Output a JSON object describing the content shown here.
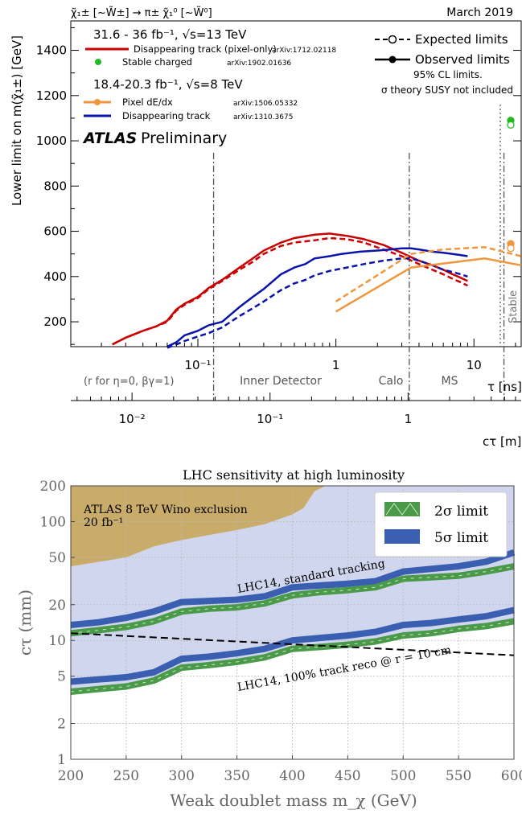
{
  "chart_data": [
    {
      "type": "line",
      "process": "χ̃₁± [~W̃±] → π± χ̃₁⁰ [~W̃⁰]",
      "date": "March 2019",
      "ylabel": "Lower limit on m(χ̃₁±) [GeV]",
      "x_axis_tau": {
        "label": "τ [ns]",
        "scale": "log",
        "range": [
          0.012,
          22
        ],
        "ticks": [
          {
            "v": 0.1,
            "label": "10⁻¹"
          },
          {
            "v": 1,
            "label": "1"
          },
          {
            "v": 10,
            "label": "10"
          }
        ]
      },
      "x_axis_ctau": {
        "label": "cτ [m]",
        "scale": "log",
        "range": [
          0.0036,
          6.6
        ],
        "ticks": [
          {
            "v": 0.01,
            "label": "10⁻²"
          },
          {
            "v": 0.1,
            "label": "10⁻¹"
          },
          {
            "v": 1,
            "label": "1"
          },
          {
            "v": 10,
            "label": "10"
          }
        ]
      },
      "ylim": [
        90,
        1530
      ],
      "y_ticks": [
        200,
        400,
        600,
        800,
        1000,
        1200,
        1400
      ],
      "regions": [
        "(r for η=0, βγ=1)",
        "Inner Detector",
        "Calo",
        "MS",
        "Stable"
      ],
      "region_boundaries_tau_ns": [
        0.13,
        3.4,
        16.5
      ],
      "atlas_label": "ATLAS",
      "preliminary_label": "Preliminary",
      "legend_groups": [
        {
          "header": "31.6 - 36 fb⁻¹, √s=13 TeV",
          "entries": [
            {
              "name": "Disappearing track (pixel-only)",
              "ref": "arXiv:1712.02118",
              "color": "#cc0000",
              "marker": "line"
            },
            {
              "name": "Stable charged",
              "ref": "arXiv:1902.01636",
              "color": "#22bb22",
              "marker": "dot"
            }
          ]
        },
        {
          "header": "18.4-20.3 fb⁻¹, √s=8 TeV",
          "entries": [
            {
              "name": "Pixel dE/dx",
              "ref": "arXiv:1506.05332",
              "color": "#f0963c",
              "marker": "line-dot"
            },
            {
              "name": "Disappearing track",
              "ref": "arXiv:1310.3675",
              "color": "#0a14aa",
              "marker": "line"
            }
          ]
        }
      ],
      "style_legend": {
        "expected": "Expected limits",
        "observed": "Observed limits",
        "note1": "95% CL limits.",
        "note2": "σ theory SUSY not included"
      },
      "series": [
        {
          "name": "Disappearing track (pixel-only)",
          "kind": "observed",
          "color": "#cc0000",
          "x": [
            0.024,
            0.03,
            0.04,
            0.05,
            0.06,
            0.07,
            0.08,
            0.1,
            0.12,
            0.15,
            0.2,
            0.25,
            0.3,
            0.4,
            0.5,
            0.7,
            0.9,
            1.2,
            1.6,
            2.2,
            3,
            4,
            5,
            6,
            7,
            8,
            9
          ],
          "y": [
            100,
            130,
            160,
            180,
            205,
            255,
            280,
            310,
            350,
            385,
            440,
            480,
            515,
            550,
            570,
            585,
            590,
            580,
            565,
            540,
            505,
            470,
            450,
            430,
            410,
            395,
            380
          ]
        },
        {
          "name": "Disappearing track (pixel-only)",
          "kind": "expected",
          "color": "#cc0000",
          "x": [
            0.024,
            0.03,
            0.04,
            0.05,
            0.06,
            0.07,
            0.08,
            0.1,
            0.12,
            0.15,
            0.2,
            0.25,
            0.3,
            0.4,
            0.5,
            0.7,
            0.9,
            1.2,
            1.6,
            2.2,
            3,
            4,
            5,
            6,
            7,
            8,
            9
          ],
          "y": [
            100,
            130,
            160,
            180,
            200,
            250,
            275,
            305,
            345,
            380,
            430,
            465,
            500,
            535,
            550,
            560,
            570,
            565,
            550,
            520,
            490,
            455,
            430,
            410,
            390,
            375,
            360
          ]
        },
        {
          "name": "Disappearing track",
          "kind": "observed",
          "color": "#0a14aa",
          "x": [
            0.06,
            0.07,
            0.08,
            0.1,
            0.12,
            0.15,
            0.2,
            0.25,
            0.3,
            0.4,
            0.5,
            0.6,
            0.7,
            0.9,
            1.1,
            1.5,
            2,
            2.5,
            3,
            3.5,
            4,
            5,
            6,
            7,
            8,
            9
          ],
          "y": [
            90,
            110,
            140,
            160,
            185,
            200,
            265,
            310,
            345,
            410,
            440,
            455,
            480,
            490,
            500,
            510,
            515,
            520,
            525,
            525,
            520,
            510,
            505,
            500,
            495,
            490
          ]
        },
        {
          "name": "Disappearing track",
          "kind": "expected",
          "color": "#0a14aa",
          "x": [
            0.06,
            0.07,
            0.08,
            0.1,
            0.12,
            0.15,
            0.2,
            0.25,
            0.3,
            0.4,
            0.5,
            0.6,
            0.7,
            0.9,
            1.2,
            1.6,
            2.2,
            3,
            3.5,
            4,
            5,
            6,
            7,
            8,
            9
          ],
          "y": [
            85,
            100,
            115,
            135,
            150,
            175,
            225,
            260,
            290,
            340,
            370,
            385,
            405,
            425,
            440,
            455,
            470,
            480,
            480,
            470,
            450,
            430,
            420,
            410,
            400
          ]
        },
        {
          "name": "Pixel dE/dx",
          "kind": "observed",
          "color": "#f0963c",
          "x": [
            1,
            3.5,
            12,
            22
          ],
          "y": [
            245,
            440,
            480,
            450
          ]
        },
        {
          "name": "Pixel dE/dx",
          "kind": "expected",
          "color": "#f0963c",
          "x": [
            1,
            3.5,
            6,
            12,
            22
          ],
          "y": [
            290,
            500,
            520,
            530,
            490
          ]
        }
      ],
      "stable_points": [
        {
          "name": "Stable charged",
          "kind": "observed",
          "y": 1090,
          "color": "#22bb22"
        },
        {
          "name": "Stable charged",
          "kind": "expected",
          "y": 1070,
          "color": "#22bb22"
        },
        {
          "name": "Pixel dE/dx",
          "kind": "observed",
          "y": 545,
          "color": "#f0963c"
        },
        {
          "name": "Pixel dE/dx",
          "kind": "expected",
          "y": 525,
          "color": "#f0963c"
        }
      ]
    },
    {
      "type": "area",
      "title": "LHC sensitivity at high luminosity",
      "xlabel": "Weak doublet mass m_χ (GeV)",
      "ylabel": "cτ (mm)",
      "xlim": [
        200,
        600
      ],
      "ylim": [
        1,
        200
      ],
      "yscale": "log",
      "x_ticks": [
        200,
        250,
        300,
        350,
        400,
        450,
        500,
        550,
        600
      ],
      "y_ticks": [
        1,
        2,
        5,
        10,
        20,
        50,
        100,
        200
      ],
      "grid": true,
      "legend_position": "top-right",
      "legend": [
        {
          "name": "2σ limit",
          "color": "#4a9a4a"
        },
        {
          "name": "5σ limit",
          "color": "#3a5fb0"
        }
      ],
      "atlas_exclusion": {
        "label_line1": "ATLAS 8 TeV Wino exclusion",
        "label_line2": "20 fb⁻¹",
        "color": "#c9ab6a",
        "x": [
          200,
          250,
          275,
          300,
          350,
          375,
          400,
          410,
          420,
          430
        ],
        "y": [
          42,
          50,
          62,
          70,
          85,
          95,
          115,
          130,
          180,
          200
        ]
      },
      "sensitivity_region": {
        "color": "#d0d6ee"
      },
      "band_labels": [
        "LHC14, standard tracking",
        "LHC14, 100% track reco @ r = 10 cm"
      ],
      "bands": [
        {
          "name": "LHC14, standard tracking",
          "sigma": "5σ",
          "x": [
            200,
            225,
            250,
            275,
            300,
            325,
            350,
            375,
            400,
            425,
            450,
            475,
            500,
            525,
            550,
            575,
            600
          ],
          "y": [
            13.5,
            14.2,
            15.5,
            17.5,
            21,
            21.5,
            22,
            23.5,
            28,
            29,
            30,
            31.5,
            38,
            40,
            42,
            46,
            55
          ]
        },
        {
          "name": "LHC14, standard tracking",
          "sigma": "2σ",
          "x": [
            200,
            225,
            250,
            275,
            300,
            325,
            350,
            375,
            400,
            425,
            450,
            475,
            500,
            525,
            550,
            575,
            600
          ],
          "y": [
            11.5,
            12.2,
            13,
            14.5,
            17.5,
            18.5,
            19,
            20.5,
            24,
            25.5,
            26.5,
            28,
            33,
            34,
            35,
            38,
            42
          ]
        },
        {
          "name": "LHC14, 100% track reco @ r = 10 cm",
          "sigma": "5σ",
          "x": [
            200,
            225,
            250,
            275,
            300,
            325,
            350,
            375,
            400,
            425,
            450,
            475,
            500,
            525,
            550,
            575,
            600
          ],
          "y": [
            4.5,
            4.7,
            4.9,
            5.4,
            7,
            7.3,
            7.8,
            8.5,
            10,
            10.5,
            11,
            11.8,
            13.5,
            14,
            15,
            16,
            18
          ]
        },
        {
          "name": "LHC14, 100% track reco @ r = 10 cm",
          "sigma": "2σ",
          "x": [
            200,
            225,
            250,
            275,
            300,
            325,
            350,
            375,
            400,
            425,
            450,
            475,
            500,
            525,
            550,
            575,
            600
          ],
          "y": [
            3.7,
            3.9,
            4.1,
            4.6,
            5.9,
            6.2,
            6.6,
            7.2,
            8.5,
            8.8,
            9.2,
            9.8,
            11,
            11.5,
            12.5,
            13.2,
            14.5
          ]
        }
      ],
      "dashed_line": {
        "x": [
          200,
          600
        ],
        "y": [
          11.5,
          7.5
        ]
      }
    }
  ]
}
